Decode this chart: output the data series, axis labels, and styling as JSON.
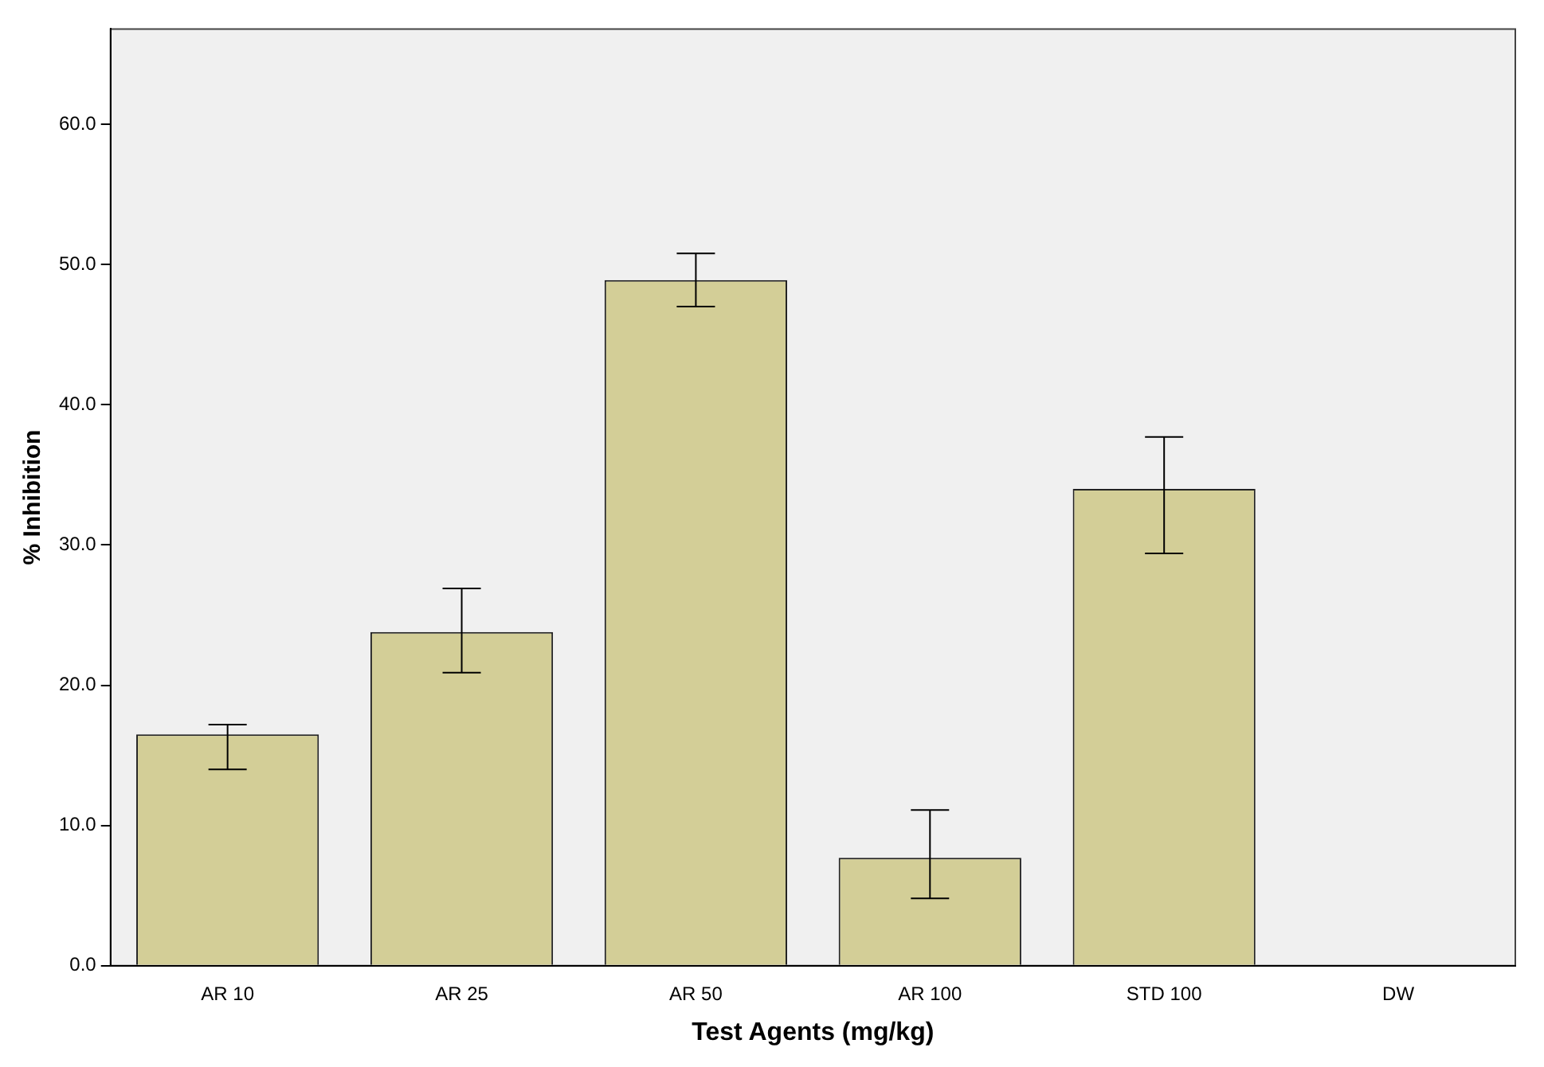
{
  "chart_data": {
    "type": "bar",
    "xlabel": "Test Agents (mg/kg)",
    "ylabel": "% Inhibition",
    "categories": [
      "AR 10",
      "AR 25",
      "AR 50",
      "AR 100",
      "STD 100",
      "DW"
    ],
    "values": [
      16.5,
      23.8,
      48.9,
      7.7,
      34.0,
      0
    ],
    "errors": [
      [
        14.0,
        17.2
      ],
      [
        20.9,
        26.9
      ],
      [
        47.0,
        50.8
      ],
      [
        4.8,
        11.1
      ],
      [
        29.4,
        37.7
      ],
      null
    ],
    "color": "#d3ce97",
    "ylim": [
      0,
      66.8
    ],
    "yticks": [
      {
        "value": 0,
        "label": "0.0"
      },
      {
        "value": 10,
        "label": "10.0"
      },
      {
        "value": 20,
        "label": "20.0"
      },
      {
        "value": 30,
        "label": "30.0"
      },
      {
        "value": 40,
        "label": "40.0"
      },
      {
        "value": 50,
        "label": "50.0"
      },
      {
        "value": 60,
        "label": "60.0"
      }
    ],
    "grid": false,
    "legend": false
  }
}
